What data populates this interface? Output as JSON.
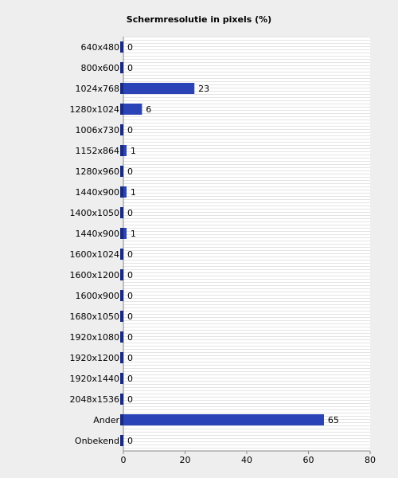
{
  "chart_data": {
    "type": "bar",
    "orientation": "horizontal",
    "title": "Schermresolutie in pixels (%)",
    "categories": [
      "640x480",
      "800x600",
      "1024x768",
      "1280x1024",
      "1006x730",
      "1152x864",
      "1280x960",
      "1440x900",
      "1400x1050",
      "1440x900",
      "1600x1024",
      "1600x1200",
      "1600x900",
      "1680x1050",
      "1920x1080",
      "1920x1200",
      "1920x1440",
      "2048x1536",
      "Ander",
      "Onbekend"
    ],
    "values": [
      0,
      0,
      23,
      6,
      0,
      1,
      0,
      1,
      0,
      1,
      0,
      0,
      0,
      0,
      0,
      0,
      0,
      0,
      65,
      0
    ],
    "color": "#2a44b8",
    "xlim": [
      0,
      80
    ],
    "xticks": [
      0,
      20,
      40,
      60,
      80
    ]
  }
}
